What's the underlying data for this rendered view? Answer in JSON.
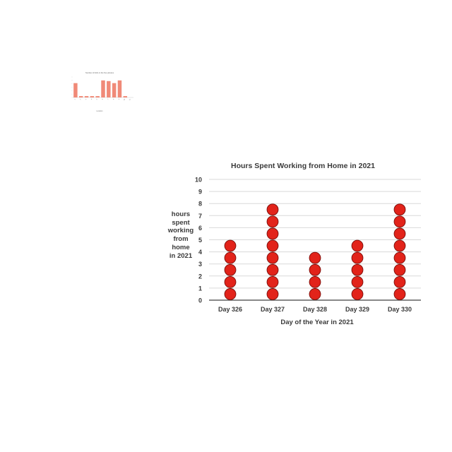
{
  "chart_data": [
    {
      "type": "bar",
      "title": "Number of birds in the five pictures",
      "xlabel": "Location",
      "ylabel": "",
      "categories": [
        "1",
        "2",
        "3",
        "4",
        "5",
        "6",
        "7",
        "8",
        "9",
        "10",
        "11"
      ],
      "values": [
        21,
        2,
        2,
        2,
        2,
        25,
        24,
        21,
        25,
        2,
        0
      ],
      "ylim": [
        0,
        30
      ],
      "color": "#f08a78"
    },
    {
      "type": "scatter",
      "subtype": "dot-plot",
      "title": "Hours Spent Working from Home in 2021",
      "xlabel": "Day of the Year in 2021",
      "ylabel_lines": [
        "hours",
        "spent",
        "working",
        "from",
        "home",
        "in 2021"
      ],
      "categories": [
        "Day 326",
        "Day 327",
        "Day 328",
        "Day 329",
        "Day 330"
      ],
      "values": [
        5,
        8,
        4,
        5,
        8
      ],
      "ylim": [
        0,
        10
      ],
      "yticks": [
        "0",
        "1",
        "2",
        "3",
        "4",
        "5",
        "6",
        "7",
        "8",
        "9",
        "10"
      ],
      "grid": true,
      "dot_color": "#e2231a",
      "dot_stroke": "#7a0e0a",
      "grid_color": "#d9d9d9",
      "axis_color": "#404040"
    }
  ]
}
